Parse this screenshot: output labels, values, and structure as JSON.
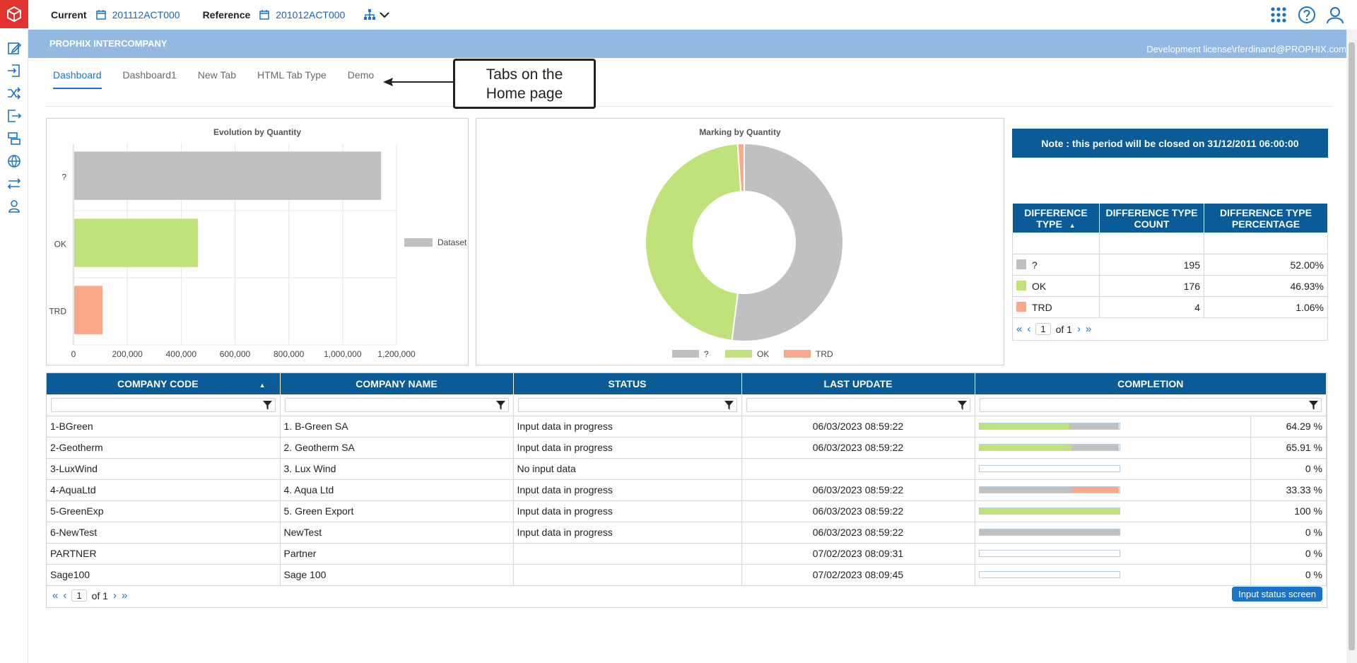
{
  "topbar": {
    "current_label": "Current",
    "current_value": "201112ACT000",
    "reference_label": "Reference",
    "reference_value": "201012ACT000"
  },
  "app": {
    "title": "PROPHIX INTERCOMPANY",
    "license": "Development license\\rferdinand@PROPHIX.com"
  },
  "tabs": [
    "Dashboard",
    "Dashboard1",
    "New Tab",
    "HTML Tab Type",
    "Demo"
  ],
  "callout": {
    "line1": "Tabs on the",
    "line2": "Home page"
  },
  "colors": {
    "gray": "#c0c0c0",
    "ok": "#bfe27a",
    "trd": "#f9a98a",
    "header": "#0b5c96",
    "accent": "#1a73c8"
  },
  "chart_data": [
    {
      "type": "bar",
      "orientation": "horizontal",
      "title": "Evolution by Quantity",
      "categories": [
        "?",
        "OK",
        "TRD"
      ],
      "series": [
        {
          "name": "Dataset",
          "values": [
            1140000,
            460000,
            105000
          ]
        }
      ],
      "xlim": [
        0,
        1200000
      ],
      "xticks": [
        "0",
        "200,000",
        "400,000",
        "600,000",
        "800,000",
        "1,000,000",
        "1,200,000"
      ],
      "legend": "right",
      "grid": true
    },
    {
      "type": "pie",
      "donut": true,
      "title": "Marking by Quantity",
      "labels": [
        "?",
        "OK",
        "TRD"
      ],
      "values": [
        195,
        176,
        4
      ],
      "legend": "bottom"
    }
  ],
  "note": "Note : this period will be closed on 31/12/2011 06:00:00",
  "diff_table": {
    "headers": [
      "DIFFERENCE TYPE",
      "DIFFERENCE TYPE COUNT",
      "DIFFERENCE TYPE PERCENTAGE"
    ],
    "rows": [
      {
        "type": "?",
        "count": "195",
        "pct": "52.00%"
      },
      {
        "type": "OK",
        "count": "176",
        "pct": "46.93%"
      },
      {
        "type": "TRD",
        "count": "4",
        "pct": "1.06%"
      }
    ],
    "pager": {
      "page": "1",
      "of": "of 1"
    }
  },
  "company_table": {
    "headers": [
      "COMPANY CODE",
      "COMPANY NAME",
      "STATUS",
      "LAST UPDATE",
      "COMPLETION"
    ],
    "rows": [
      {
        "code": "1-BGreen",
        "name": "1. B-Green SA",
        "status": "Input data in progress",
        "update": "06/03/2023 08:59:22",
        "pct": "64.29 %",
        "segs": [
          64.29,
          35.71,
          0
        ]
      },
      {
        "code": "2-Geotherm",
        "name": "2. Geotherm SA",
        "status": "Input data in progress",
        "update": "06/03/2023 08:59:22",
        "pct": "65.91 %",
        "segs": [
          65.91,
          34.09,
          0
        ]
      },
      {
        "code": "3-LuxWind",
        "name": "3. Lux Wind",
        "status": "No input data",
        "update": "",
        "pct": "0 %",
        "segs": [
          0,
          0,
          0
        ]
      },
      {
        "code": "4-AquaLtd",
        "name": "4. Aqua Ltd",
        "status": "Input data in progress",
        "update": "06/03/2023 08:59:22",
        "pct": "33.33 %",
        "segs": [
          0,
          66.67,
          33.33
        ]
      },
      {
        "code": "5-GreenExp",
        "name": "5. Green Export",
        "status": "Input data in progress",
        "update": "06/03/2023 08:59:22",
        "pct": "100 %",
        "segs": [
          100,
          0,
          0
        ]
      },
      {
        "code": "6-NewTest",
        "name": "NewTest",
        "status": "Input data in progress",
        "update": "06/03/2023 08:59:22",
        "pct": "0 %",
        "segs": [
          0,
          100,
          0
        ]
      },
      {
        "code": "PARTNER",
        "name": "Partner",
        "status": "",
        "update": "07/02/2023 08:09:31",
        "pct": "0 %",
        "segs": [
          0,
          0,
          0
        ]
      },
      {
        "code": "Sage100",
        "name": "Sage 100",
        "status": "",
        "update": "07/02/2023 08:09:45",
        "pct": "0 %",
        "segs": [
          0,
          0,
          0
        ]
      }
    ],
    "pager": {
      "page": "1",
      "of": "of 1"
    },
    "button": "Input status screen"
  }
}
